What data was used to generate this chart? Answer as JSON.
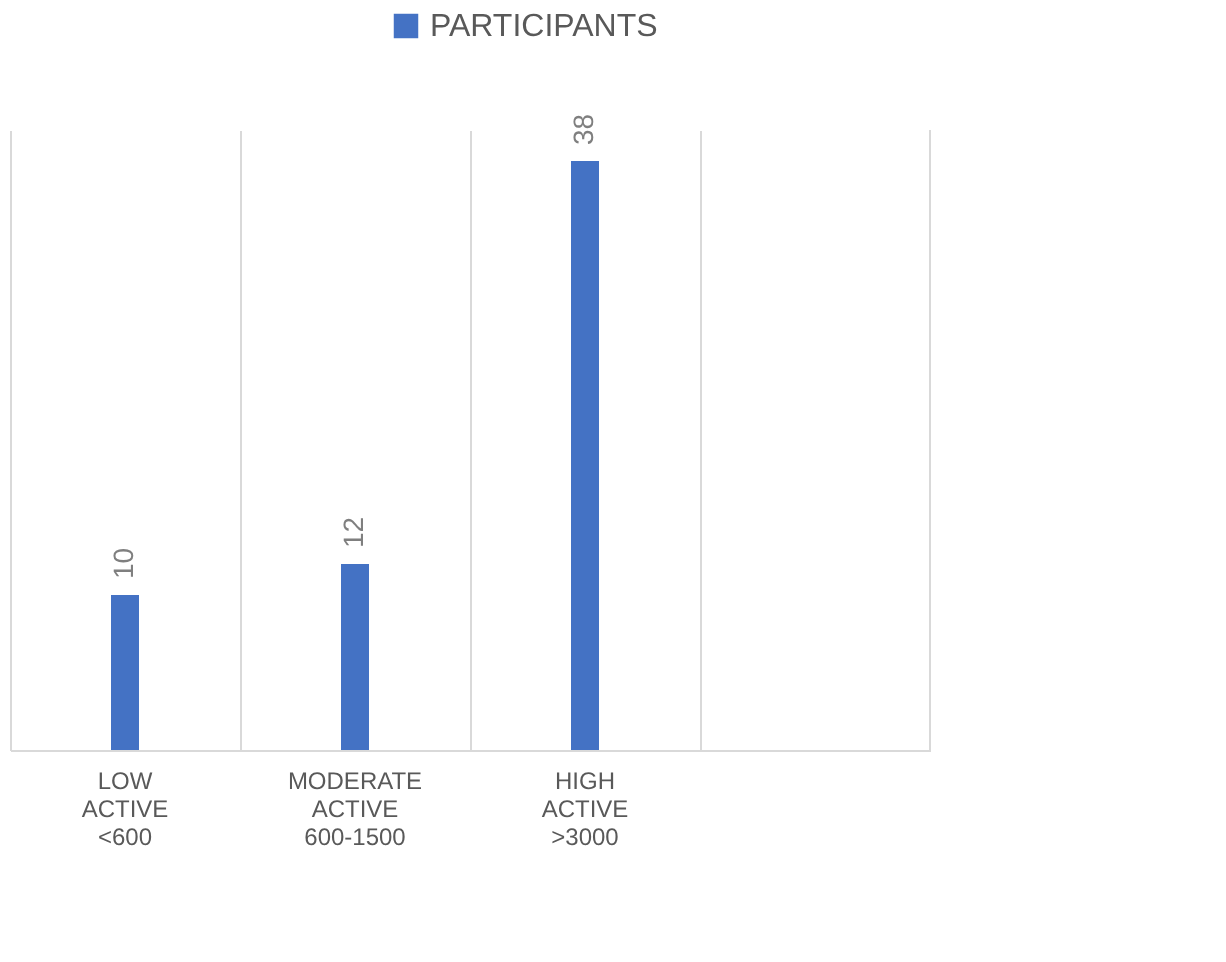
{
  "chart_data": {
    "type": "bar",
    "categories": [
      "LOW ACTIVE <600",
      "MODERATE ACTIVE 600-1500",
      "HIGH ACTIVE >3000",
      null
    ],
    "series": [
      {
        "name": "PARTICIPANTS",
        "color": "#4472c4",
        "values": [
          10,
          12,
          38,
          null
        ]
      }
    ],
    "data_labels": true,
    "grid": "x",
    "legend": "top",
    "tick_labels": "x"
  }
}
